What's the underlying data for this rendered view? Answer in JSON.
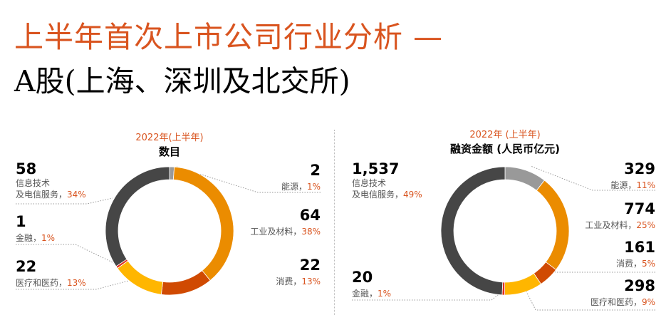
{
  "title": {
    "line1": "上半年首次上市公司行业分析 —",
    "line2": "A股(上海、深圳及北交所)"
  },
  "colors": {
    "accent": "#d9541f",
    "energy": "#999999",
    "industrial": "#eb8c00",
    "consumer": "#d04a02",
    "healthcare": "#ffb600",
    "finance": "#e0301e",
    "tech": "#464646"
  },
  "left_chart": {
    "year": "2022年(上半年)",
    "metric": "数目",
    "items": {
      "tech": {
        "value": "58",
        "name1": "信息技术",
        "name2": "及电信服务，",
        "pct": "34%"
      },
      "finance": {
        "value": "1",
        "name": "金融，",
        "pct": "1%"
      },
      "healthcare": {
        "value": "22",
        "name": "医疗和医药，",
        "pct": "13%"
      },
      "energy": {
        "value": "2",
        "name": "能源，",
        "pct": "1%"
      },
      "industrial": {
        "value": "64",
        "name": "工业及材料，",
        "pct": "38%"
      },
      "consumer": {
        "value": "22",
        "name": "消费，",
        "pct": "13%"
      }
    }
  },
  "right_chart": {
    "year": "2022年 (上半年)",
    "metric": "融资金额 (人民币亿元)",
    "items": {
      "tech": {
        "value": "1,537",
        "name1": "信息技术",
        "name2": "及电信服务，",
        "pct": "49%"
      },
      "finance": {
        "value": "20",
        "name": "金融，",
        "pct": "1%"
      },
      "energy": {
        "value": "329",
        "name": "能源，",
        "pct": "11%"
      },
      "industrial": {
        "value": "774",
        "name": "工业及材料，",
        "pct": "25%"
      },
      "consumer": {
        "value": "161",
        "name": "消费，",
        "pct": "5%"
      },
      "healthcare": {
        "value": "298",
        "name": "医疗和医药，",
        "pct": "9%"
      }
    }
  },
  "chart_data": [
    {
      "type": "pie",
      "title": "2022年(上半年) 数目",
      "categories": [
        "能源",
        "工业及材料",
        "消费",
        "医疗和医药",
        "金融",
        "信息技术及电信服务"
      ],
      "values": [
        2,
        64,
        22,
        22,
        1,
        58
      ],
      "percent": [
        1,
        38,
        13,
        13,
        1,
        34
      ]
    },
    {
      "type": "pie",
      "title": "2022年 (上半年) 融资金额 (人民币亿元)",
      "categories": [
        "能源",
        "工业及材料",
        "消费",
        "医疗和医药",
        "金融",
        "信息技术及电信服务"
      ],
      "values": [
        329,
        774,
        161,
        298,
        20,
        1537
      ],
      "percent": [
        11,
        25,
        5,
        9,
        1,
        49
      ]
    }
  ]
}
